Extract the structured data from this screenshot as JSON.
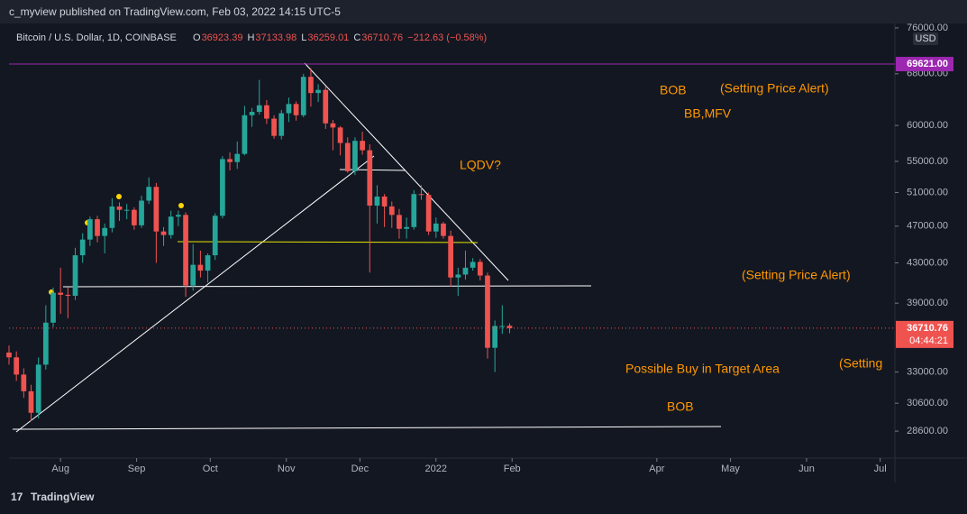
{
  "chart_data": {
    "type": "candlestick",
    "header": "c_myview published on TradingView.com, Feb 03, 2022 14:15 UTC-5",
    "symbol": "Bitcoin / U.S. Dollar, 1D, COINBASE",
    "ohlc": [
      {
        "key": "O",
        "value": "36923.39"
      },
      {
        "key": "H",
        "value": "37133.98"
      },
      {
        "key": "L",
        "value": "36259.01"
      },
      {
        "key": "C",
        "value": "36710.76"
      }
    ],
    "change": "−212.63 (−0.58%)",
    "currency": "USD",
    "footer": "TradingView",
    "x": [
      0,
      3,
      6,
      9,
      12,
      15,
      18,
      21,
      24,
      27,
      30,
      33,
      36,
      39,
      42,
      45,
      48,
      51,
      54,
      57,
      60,
      63,
      66,
      69,
      72,
      75,
      78,
      81,
      84,
      87,
      90,
      93,
      96,
      99,
      102,
      105,
      108,
      111,
      114,
      117,
      120,
      123,
      126,
      129,
      132,
      135,
      138,
      141,
      144,
      147,
      150,
      153,
      156,
      159,
      162,
      165,
      168,
      171,
      174,
      177,
      180,
      183,
      186,
      189,
      192,
      195,
      198,
      201,
      204
    ],
    "open": [
      34600,
      34200,
      32800,
      31500,
      29900,
      33600,
      37200,
      40000,
      39800,
      39700,
      43800,
      45500,
      47800,
      45900,
      46800,
      49300,
      48900,
      48900,
      47100,
      50000,
      51700,
      46400,
      46000,
      48100,
      48300,
      40700,
      42800,
      42200,
      43800,
      48200,
      55300,
      54900,
      56000,
      61500,
      62000,
      63000,
      61000,
      58500,
      61800,
      63200,
      61500,
      67500,
      64900,
      65400,
      60300,
      59700,
      57500,
      53700,
      57800,
      56500,
      49400,
      50500,
      49300,
      48300,
      46700,
      46900,
      50800,
      50700,
      46400,
      47300,
      45900,
      41500,
      41800,
      42500,
      43100,
      41700,
      35000,
      36900,
      36923.39
    ],
    "high": [
      35200,
      34700,
      33300,
      32000,
      34200,
      38800,
      40500,
      42500,
      40500,
      44600,
      46200,
      48100,
      48200,
      47300,
      50300,
      49800,
      49600,
      49200,
      50600,
      52900,
      52200,
      46900,
      48800,
      48800,
      48600,
      45000,
      44300,
      44000,
      48500,
      55700,
      56200,
      57700,
      62900,
      62600,
      67000,
      63800,
      61500,
      62300,
      64200,
      63600,
      68000,
      68900,
      66300,
      66000,
      60800,
      59900,
      58300,
      58300,
      59100,
      57300,
      51900,
      50800,
      49900,
      49000,
      48000,
      51300,
      51900,
      51000,
      48000,
      47500,
      46500,
      42500,
      44300,
      43500,
      43400,
      42000,
      37400,
      38800,
      37133.98
    ],
    "low": [
      33600,
      32300,
      31000,
      29300,
      29500,
      33200,
      36800,
      38000,
      37600,
      39300,
      43000,
      44800,
      45200,
      44000,
      46300,
      47600,
      47800,
      46600,
      46800,
      49600,
      43000,
      44800,
      45600,
      47000,
      39600,
      40200,
      41500,
      41000,
      43300,
      47900,
      53800,
      54000,
      55800,
      59800,
      61600,
      60200,
      58100,
      58000,
      60500,
      60700,
      61200,
      62800,
      63500,
      59500,
      56500,
      55800,
      53500,
      53200,
      55900,
      42000,
      47300,
      46900,
      46800,
      45600,
      45600,
      46600,
      50100,
      46000,
      45700,
      45600,
      40600,
      39700,
      41300,
      42200,
      41200,
      34100,
      33000,
      36200,
      36259.01
    ],
    "close": [
      34200,
      32800,
      31500,
      29900,
      33600,
      37200,
      40000,
      39800,
      39700,
      43800,
      45500,
      47800,
      45900,
      46800,
      49300,
      48900,
      48900,
      47100,
      50000,
      51700,
      46400,
      46000,
      48100,
      48300,
      40700,
      42800,
      42200,
      43800,
      48200,
      55300,
      54900,
      56000,
      61500,
      62000,
      63000,
      61000,
      58500,
      61800,
      63200,
      61500,
      67500,
      64900,
      65400,
      60300,
      59700,
      57500,
      53700,
      57800,
      56500,
      49400,
      50500,
      49300,
      48300,
      46700,
      46900,
      50800,
      50700,
      46400,
      47300,
      45900,
      41500,
      41800,
      42500,
      43100,
      41700,
      35000,
      36900,
      36900,
      36710.76
    ],
    "up_color": "#26a69a",
    "down_color": "#ef5350",
    "xlim": [
      0,
      361
    ],
    "xticks": [
      {
        "value": 21,
        "label": "Aug"
      },
      {
        "value": 52,
        "label": "Sep"
      },
      {
        "value": 82,
        "label": "Oct"
      },
      {
        "value": 113,
        "label": "Nov"
      },
      {
        "value": 143,
        "label": "Dec"
      },
      {
        "value": 174,
        "label": "2022"
      },
      {
        "value": 205,
        "label": "Feb"
      },
      {
        "value": 264,
        "label": "Apr"
      },
      {
        "value": 294,
        "label": "May"
      },
      {
        "value": 325,
        "label": "Jun"
      },
      {
        "value": 355,
        "label": "Jul"
      }
    ],
    "ylim": [
      26790,
      77500
    ],
    "log_scale": true,
    "yticks": [
      {
        "value": 28600,
        "label": "28600.00"
      },
      {
        "value": 30600,
        "label": "30600.00"
      },
      {
        "value": 33000,
        "label": "33000.00"
      },
      {
        "value": 39000,
        "label": "39000.00"
      },
      {
        "value": 43000,
        "label": "43000.00"
      },
      {
        "value": 47000,
        "label": "47000.00"
      },
      {
        "value": 51000,
        "label": "51000.00"
      },
      {
        "value": 55000,
        "label": "55000.00"
      },
      {
        "value": 60000,
        "label": "60000.00"
      },
      {
        "value": 68000,
        "label": "68000.00"
      },
      {
        "value": 76000,
        "label": "76000.00"
      }
    ],
    "alert_level": {
      "value": 69621,
      "label": "69621.00",
      "color": "#9c27b0"
    },
    "last_price": {
      "value": 36710.76,
      "label": "36710.76",
      "countdown": "04:44:21"
    },
    "annotations": [
      "BOB",
      "(Setting Price Alert)",
      "BB,MFV",
      "LQDV?",
      "(Setting Price Alert)",
      "Possible Buy in Target Area",
      "(Setting",
      "BOB"
    ]
  }
}
